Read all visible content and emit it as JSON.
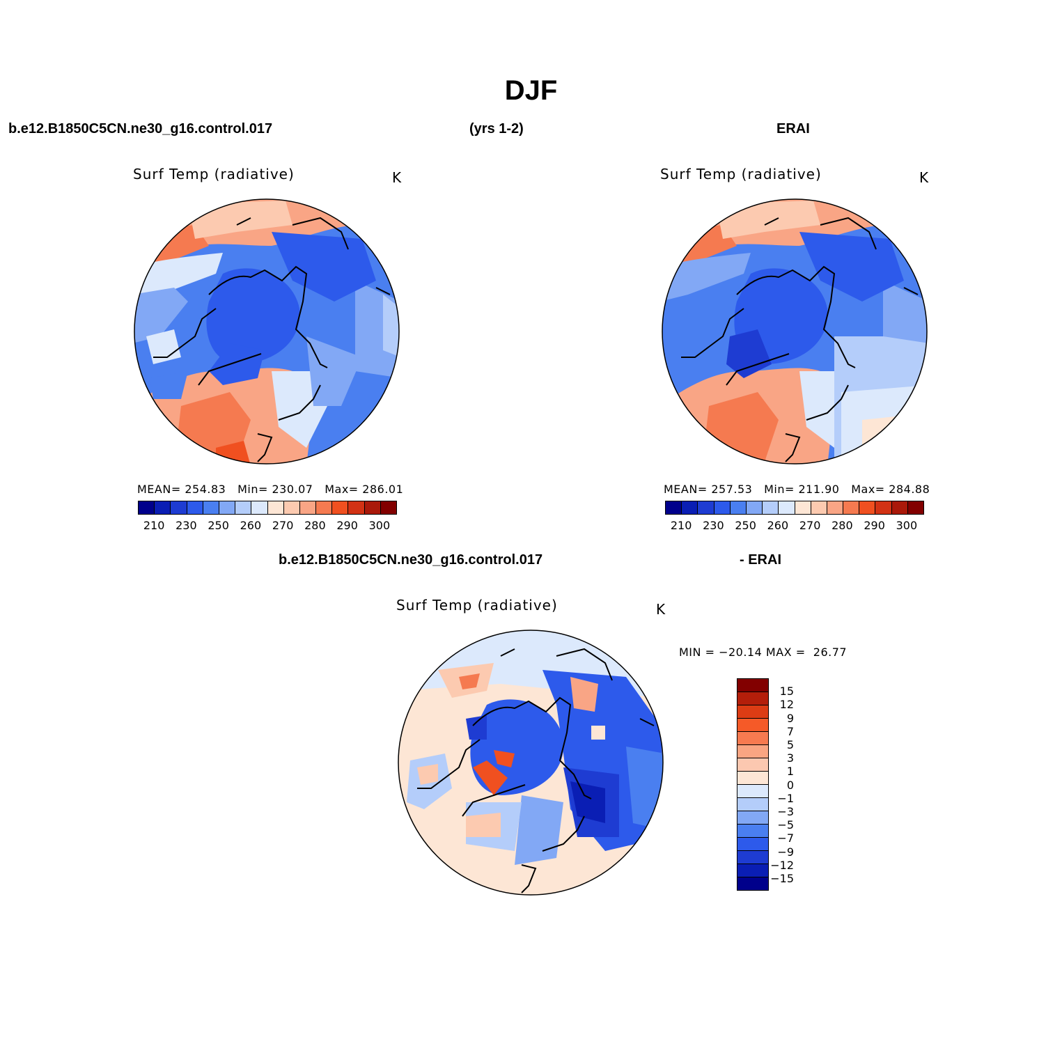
{
  "title": "DJF",
  "header": {
    "case": "b.e12.B1850C5CN.ne30_g16.control.017",
    "years": "(yrs 1-2)",
    "obs": "ERAI"
  },
  "diff_header": {
    "case": "b.e12.B1850C5CN.ne30_g16.control.017",
    "obs": "- ERAI"
  },
  "panels": [
    {
      "title": "Surf Temp (radiative)",
      "units": "K",
      "mean_label": "MEAN=",
      "mean": "254.83",
      "min_label": "Min=",
      "min": "230.07",
      "max_label": "Max=",
      "max": "286.01"
    },
    {
      "title": "Surf Temp (radiative)",
      "units": "K",
      "mean_label": "MEAN=",
      "mean": "257.53",
      "min_label": "Min=",
      "min": "211.90",
      "max_label": "Max=",
      "max": "284.88"
    }
  ],
  "diff_panel": {
    "title": "Surf Temp (radiative)",
    "units": "K",
    "min_label": "MIN =",
    "min": "−20.14",
    "max_label": "MAX =",
    "max": "26.77"
  },
  "abs_colorbar": {
    "colors": [
      "#00008b",
      "#0a1eb4",
      "#1e3cd2",
      "#2d5aeb",
      "#4a7ff0",
      "#82a8f5",
      "#b4cdfa",
      "#dce9fc",
      "#fde6d5",
      "#fccab0",
      "#f9a585",
      "#f57a50",
      "#f05020",
      "#d23214",
      "#aa190a",
      "#820000"
    ],
    "tick_labels": [
      "210",
      "230",
      "250",
      "260",
      "270",
      "280",
      "290",
      "300"
    ]
  },
  "diff_colorbar": {
    "colors": [
      "#820000",
      "#b41e0a",
      "#dc3c14",
      "#f55a28",
      "#f77a50",
      "#f9a582",
      "#fcc8b0",
      "#fde6d5",
      "#dce9fc",
      "#b4cdfa",
      "#82a8f5",
      "#4a7ff0",
      "#2d5aeb",
      "#1e3cd2",
      "#0a1eb4",
      "#00008b"
    ],
    "tick_labels": [
      "15",
      "12",
      "9",
      "7",
      "5",
      "3",
      "1",
      "0",
      "−1",
      "−3",
      "−5",
      "−7",
      "−9",
      "−12",
      "−15"
    ]
  }
}
